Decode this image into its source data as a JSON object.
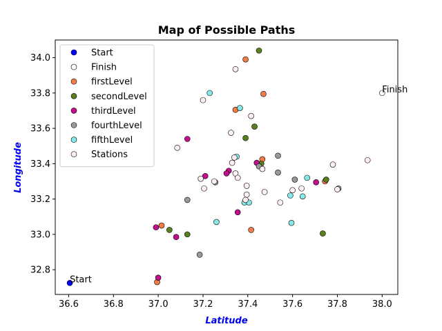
{
  "chart_data": {
    "type": "scatter",
    "title": "Map of Possible Paths",
    "xlabel": "Latitude",
    "ylabel": "Longitude",
    "xlim": [
      36.54,
      38.07
    ],
    "ylim": [
      32.66,
      41.0
    ],
    "ylim_display": [
      32.66,
      34.1
    ],
    "xticks": [
      "36.6",
      "36.8",
      "37.0",
      "37.2",
      "37.4",
      "37.6",
      "37.8",
      "38.0"
    ],
    "yticks": [
      "32.8",
      "33.0",
      "33.2",
      "33.4",
      "33.6",
      "33.8",
      "34.0"
    ],
    "legend_position": "top-left",
    "grid": false,
    "series": [
      {
        "name": "Start",
        "color": "#0000ff",
        "points": [
          [
            36.605,
            32.725
          ]
        ]
      },
      {
        "name": "Finish",
        "color": "#ffffff",
        "points": [
          [
            38.0,
            33.8
          ]
        ]
      },
      {
        "name": "firstLevel",
        "color": "#f47c48",
        "points": [
          [
            37.39,
            33.99
          ],
          [
            37.47,
            33.795
          ],
          [
            37.345,
            33.705
          ],
          [
            37.465,
            33.425
          ],
          [
            37.015,
            33.05
          ],
          [
            37.415,
            33.025
          ],
          [
            37.745,
            33.3
          ],
          [
            36.995,
            32.73
          ]
        ]
      },
      {
        "name": "secondLevel",
        "color": "#5a7f1e",
        "points": [
          [
            37.45,
            34.04
          ],
          [
            37.43,
            33.61
          ],
          [
            37.39,
            33.545
          ],
          [
            37.46,
            33.4
          ],
          [
            37.05,
            33.025
          ],
          [
            37.13,
            33.0
          ],
          [
            37.75,
            33.31
          ],
          [
            37.735,
            33.005
          ]
        ]
      },
      {
        "name": "thirdLevel",
        "color": "#c0108a",
        "points": [
          [
            37.13,
            33.54
          ],
          [
            37.315,
            33.36
          ],
          [
            37.305,
            33.345
          ],
          [
            37.21,
            33.33
          ],
          [
            37.44,
            33.405
          ],
          [
            37.705,
            33.295
          ],
          [
            37.355,
            33.125
          ],
          [
            36.99,
            33.04
          ],
          [
            37.08,
            32.985
          ],
          [
            37.0,
            32.755
          ]
        ]
      },
      {
        "name": "fourthLevel",
        "color": "#999999",
        "points": [
          [
            37.535,
            33.445
          ],
          [
            37.45,
            33.385
          ],
          [
            37.535,
            33.35
          ],
          [
            37.61,
            33.31
          ],
          [
            37.255,
            33.295
          ],
          [
            37.805,
            33.26
          ],
          [
            37.13,
            33.195
          ],
          [
            37.185,
            32.885
          ]
        ]
      },
      {
        "name": "fifthLevel",
        "color": "#88e8e8",
        "points": [
          [
            37.23,
            33.8
          ],
          [
            37.365,
            33.715
          ],
          [
            37.35,
            33.44
          ],
          [
            37.665,
            33.32
          ],
          [
            37.59,
            33.22
          ],
          [
            37.645,
            33.215
          ],
          [
            37.385,
            33.18
          ],
          [
            37.405,
            33.18
          ],
          [
            37.26,
            33.07
          ],
          [
            37.595,
            33.065
          ]
        ]
      },
      {
        "name": "Stations",
        "color": "#fff0f5",
        "points": [
          [
            37.345,
            33.935
          ],
          [
            37.2,
            33.76
          ],
          [
            37.415,
            33.67
          ],
          [
            37.325,
            33.575
          ],
          [
            37.085,
            33.49
          ],
          [
            37.34,
            33.435
          ],
          [
            37.33,
            33.405
          ],
          [
            37.935,
            33.42
          ],
          [
            37.78,
            33.395
          ],
          [
            37.465,
            33.37
          ],
          [
            37.345,
            33.345
          ],
          [
            37.355,
            33.32
          ],
          [
            37.19,
            33.315
          ],
          [
            37.25,
            33.3
          ],
          [
            37.395,
            33.275
          ],
          [
            37.205,
            33.26
          ],
          [
            37.6,
            33.25
          ],
          [
            37.64,
            33.26
          ],
          [
            37.475,
            33.24
          ],
          [
            37.395,
            33.225
          ],
          [
            37.39,
            33.195
          ],
          [
            37.545,
            33.18
          ],
          [
            37.8,
            33.255
          ]
        ]
      }
    ],
    "annotations": [
      {
        "text": "Start",
        "x": 36.605,
        "y": 32.725
      },
      {
        "text": "Finish",
        "x": 38.0,
        "y": 33.8
      }
    ]
  }
}
